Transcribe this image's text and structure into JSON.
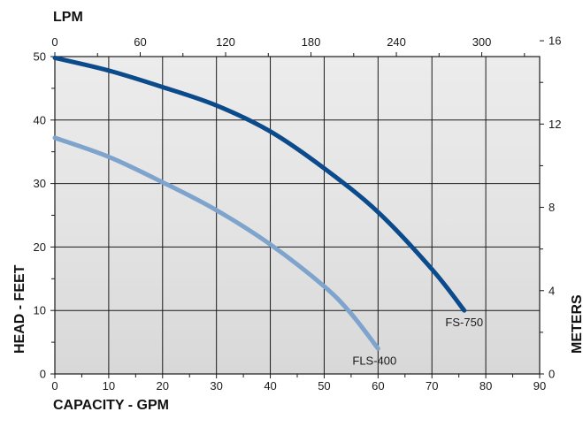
{
  "chart_data": {
    "type": "line",
    "x_label": "CAPACITY - GPM",
    "x_top_label": "LPM",
    "y_label": "HEAD - FEET",
    "y_right_label": "METERS",
    "xlim": [
      0,
      90
    ],
    "ylim": [
      0,
      50
    ],
    "x_ticks": [
      0,
      10,
      20,
      30,
      40,
      50,
      60,
      70,
      80,
      90
    ],
    "y_ticks": [
      0,
      10,
      20,
      30,
      40,
      50
    ],
    "x_top_ticks": [
      0,
      60,
      120,
      180,
      240,
      300
    ],
    "y_right_ticks": [
      0,
      4,
      8,
      12,
      16
    ],
    "grid": true,
    "series": [
      {
        "name": "FS-750",
        "color": "#0b4a8b",
        "points": [
          [
            0,
            49.8
          ],
          [
            10,
            47.8
          ],
          [
            20,
            45.2
          ],
          [
            30,
            42.3
          ],
          [
            40,
            38.2
          ],
          [
            50,
            32.4
          ],
          [
            60,
            25.5
          ],
          [
            70,
            16.5
          ],
          [
            76,
            10
          ]
        ]
      },
      {
        "name": "FLS-400",
        "color": "#7ea3cc",
        "points": [
          [
            0,
            37.2
          ],
          [
            10,
            34.2
          ],
          [
            20,
            30.2
          ],
          [
            30,
            25.8
          ],
          [
            40,
            20.4
          ],
          [
            50,
            13.8
          ],
          [
            55,
            9.5
          ],
          [
            60,
            4
          ]
        ]
      }
    ]
  }
}
